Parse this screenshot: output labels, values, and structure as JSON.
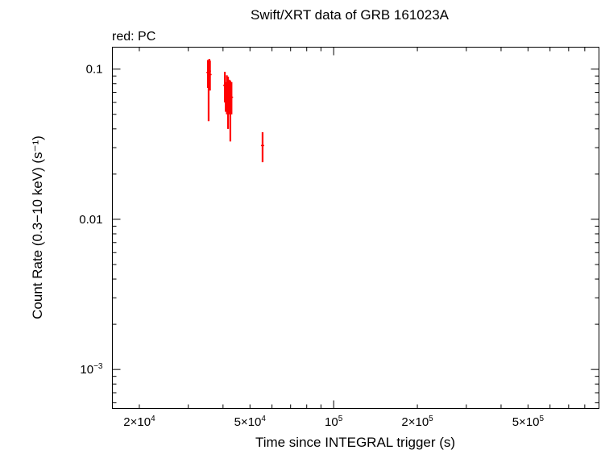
{
  "chart_data": {
    "type": "scatter",
    "title": "Swift/XRT data of GRB 161023A",
    "subtitle": "red: PC",
    "xlabel": "Time since INTEGRAL trigger (s)",
    "ylabel": "Count Rate (0.3−10 keV) (s⁻¹)",
    "x_scale": "log",
    "y_scale": "log",
    "xlim": [
      16000,
      900000
    ],
    "ylim": [
      0.00055,
      0.14
    ],
    "x_ticks": [
      {
        "value": 20000,
        "base": "2×10",
        "exp": "4"
      },
      {
        "value": 50000,
        "base": "5×10",
        "exp": "4"
      },
      {
        "value": 100000,
        "base": "10",
        "exp": "5"
      },
      {
        "value": 200000,
        "base": "2×10",
        "exp": "5"
      },
      {
        "value": 500000,
        "base": "5×10",
        "exp": "5"
      }
    ],
    "y_ticks": [
      {
        "value": 0.1,
        "base": "0.1",
        "exp": ""
      },
      {
        "value": 0.01,
        "base": "0.01",
        "exp": ""
      },
      {
        "value": 0.001,
        "base": "10",
        "exp": "−3"
      }
    ],
    "series": [
      {
        "color": "#ff0000",
        "points": [
          {
            "x": 35300,
            "y": 0.095,
            "ylo": 0.075,
            "yhi": 0.115
          },
          {
            "x": 35500,
            "y": 0.08,
            "ylo": 0.045,
            "yhi": 0.113
          },
          {
            "x": 35700,
            "y": 0.097,
            "ylo": 0.077,
            "yhi": 0.117
          },
          {
            "x": 35900,
            "y": 0.092,
            "ylo": 0.072,
            "yhi": 0.114
          },
          {
            "x": 40600,
            "y": 0.078,
            "ylo": 0.06,
            "yhi": 0.096
          },
          {
            "x": 40900,
            "y": 0.066,
            "ylo": 0.052,
            "yhi": 0.082
          },
          {
            "x": 41300,
            "y": 0.07,
            "ylo": 0.05,
            "yhi": 0.091
          },
          {
            "x": 41700,
            "y": 0.062,
            "ylo": 0.04,
            "yhi": 0.089
          },
          {
            "x": 42100,
            "y": 0.066,
            "ylo": 0.05,
            "yhi": 0.085
          },
          {
            "x": 42500,
            "y": 0.058,
            "ylo": 0.033,
            "yhi": 0.084
          },
          {
            "x": 42900,
            "y": 0.065,
            "ylo": 0.05,
            "yhi": 0.082
          },
          {
            "x": 55500,
            "y": 0.031,
            "ylo": 0.024,
            "yhi": 0.038
          }
        ]
      }
    ]
  }
}
